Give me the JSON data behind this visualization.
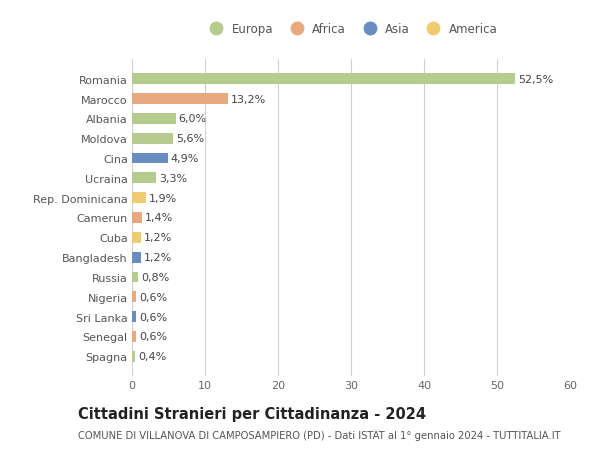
{
  "countries": [
    "Romania",
    "Marocco",
    "Albania",
    "Moldova",
    "Cina",
    "Ucraina",
    "Rep. Dominicana",
    "Camerun",
    "Cuba",
    "Bangladesh",
    "Russia",
    "Nigeria",
    "Sri Lanka",
    "Senegal",
    "Spagna"
  ],
  "values": [
    52.5,
    13.2,
    6.0,
    5.6,
    4.9,
    3.3,
    1.9,
    1.4,
    1.2,
    1.2,
    0.8,
    0.6,
    0.6,
    0.6,
    0.4
  ],
  "labels": [
    "52,5%",
    "13,2%",
    "6,0%",
    "5,6%",
    "4,9%",
    "3,3%",
    "1,9%",
    "1,4%",
    "1,2%",
    "1,2%",
    "0,8%",
    "0,6%",
    "0,6%",
    "0,6%",
    "0,4%"
  ],
  "continents": [
    "Europa",
    "Africa",
    "Europa",
    "Europa",
    "Asia",
    "Europa",
    "America",
    "Africa",
    "America",
    "Asia",
    "Europa",
    "Africa",
    "Asia",
    "Africa",
    "Europa"
  ],
  "continent_colors": {
    "Europa": "#b5cc8e",
    "Africa": "#e8a97e",
    "Asia": "#6b8cbf",
    "America": "#f0cc70"
  },
  "legend_order": [
    "Europa",
    "Africa",
    "Asia",
    "America"
  ],
  "title": "Cittadini Stranieri per Cittadinanza - 2024",
  "subtitle": "COMUNE DI VILLANOVA DI CAMPOSAMPIERO (PD) - Dati ISTAT al 1° gennaio 2024 - TUTTITALIA.IT",
  "xlim": [
    0,
    60
  ],
  "xticks": [
    0,
    10,
    20,
    30,
    40,
    50,
    60
  ],
  "bg_color": "#ffffff",
  "grid_color": "#d0d0d0",
  "bar_height": 0.55,
  "label_fontsize": 8,
  "tick_fontsize": 8,
  "title_fontsize": 10.5,
  "subtitle_fontsize": 7.2
}
